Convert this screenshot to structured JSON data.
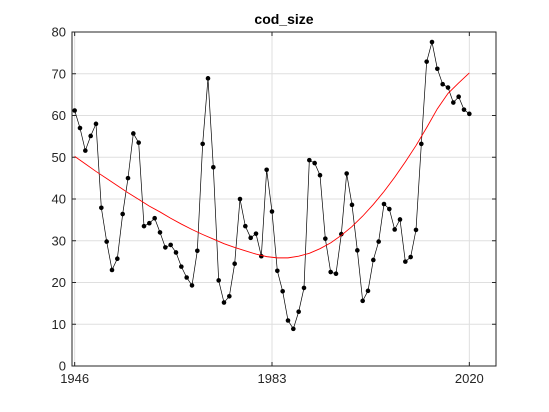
{
  "chart_data": {
    "type": "line",
    "title": "cod_size",
    "xlabel": "",
    "ylabel": "",
    "xlim": [
      1945.5,
      2025
    ],
    "ylim": [
      0,
      80
    ],
    "xticks": [
      1946,
      1983,
      2020
    ],
    "xtick_labels": [
      "1946",
      "1983",
      "2020"
    ],
    "yticks": [
      0,
      10,
      20,
      30,
      40,
      50,
      60,
      70,
      80
    ],
    "ytick_labels": [
      "0",
      "10",
      "20",
      "30",
      "40",
      "50",
      "60",
      "70",
      "80"
    ],
    "grid": true,
    "legend": "none",
    "series": [
      {
        "kind": "line-with-markers",
        "color": "#000000",
        "x": [
          1946,
          1947,
          1948,
          1949,
          1950,
          1951,
          1952,
          1953,
          1954,
          1955,
          1956,
          1957,
          1958,
          1959,
          1960,
          1961,
          1962,
          1963,
          1964,
          1965,
          1966,
          1967,
          1968,
          1969,
          1970,
          1971,
          1972,
          1973,
          1974,
          1975,
          1976,
          1977,
          1978,
          1979,
          1980,
          1981,
          1982,
          1983,
          1984,
          1985,
          1986,
          1987,
          1988,
          1989,
          1990,
          1991,
          1992,
          1993,
          1994,
          1995,
          1996,
          1997,
          1998,
          1999,
          2000,
          2001,
          2002,
          2003,
          2004,
          2005,
          2006,
          2007,
          2008,
          2009,
          2010,
          2011,
          2012,
          2013,
          2014,
          2015,
          2016,
          2017,
          2018,
          2019,
          2020
        ],
        "values": [
          61.2,
          57.0,
          51.6,
          55.1,
          58.0,
          37.9,
          29.8,
          23.0,
          25.7,
          36.4,
          45.0,
          55.7,
          53.5,
          33.5,
          34.2,
          35.4,
          32.0,
          28.4,
          29.0,
          27.2,
          23.8,
          21.2,
          19.3,
          27.6,
          53.2,
          68.9,
          47.6,
          20.5,
          15.2,
          16.7,
          24.5,
          40.0,
          33.5,
          30.7,
          31.7,
          26.3,
          47.0,
          37.0,
          22.8,
          17.9,
          10.9,
          8.9,
          13.0,
          18.7,
          49.3,
          48.6,
          45.7,
          30.5,
          22.5,
          22.1,
          31.6,
          46.1,
          38.6,
          27.7,
          15.6,
          18.0,
          25.4,
          29.8,
          38.8,
          37.6,
          32.7,
          35.1,
          25.0,
          26.1,
          32.6,
          53.2,
          72.9,
          77.6,
          71.2,
          67.5,
          66.7,
          63.1,
          64.5,
          61.4,
          60.4
        ]
      },
      {
        "kind": "fit-curve",
        "color": "#ff0000",
        "x": [
          1946,
          1948,
          1950,
          1952,
          1954,
          1956,
          1958,
          1960,
          1962,
          1964,
          1966,
          1968,
          1970,
          1972,
          1974,
          1976,
          1978,
          1980,
          1982,
          1984,
          1986,
          1988,
          1990,
          1992,
          1994,
          1996,
          1998,
          2000,
          2002,
          2004,
          2006,
          2008,
          2010,
          2012,
          2014,
          2016,
          2018,
          2020
        ],
        "values": [
          50.2,
          48.4,
          46.6,
          44.9,
          43.2,
          41.5,
          39.9,
          38.3,
          36.9,
          35.4,
          34.0,
          32.7,
          31.5,
          30.4,
          29.3,
          28.4,
          27.6,
          26.8,
          26.2,
          25.9,
          25.9,
          26.3,
          27.0,
          28.1,
          29.5,
          31.3,
          33.4,
          35.9,
          38.7,
          41.8,
          45.2,
          48.9,
          52.8,
          57.1,
          61.6,
          65.3,
          67.8,
          70.2
        ]
      }
    ]
  }
}
